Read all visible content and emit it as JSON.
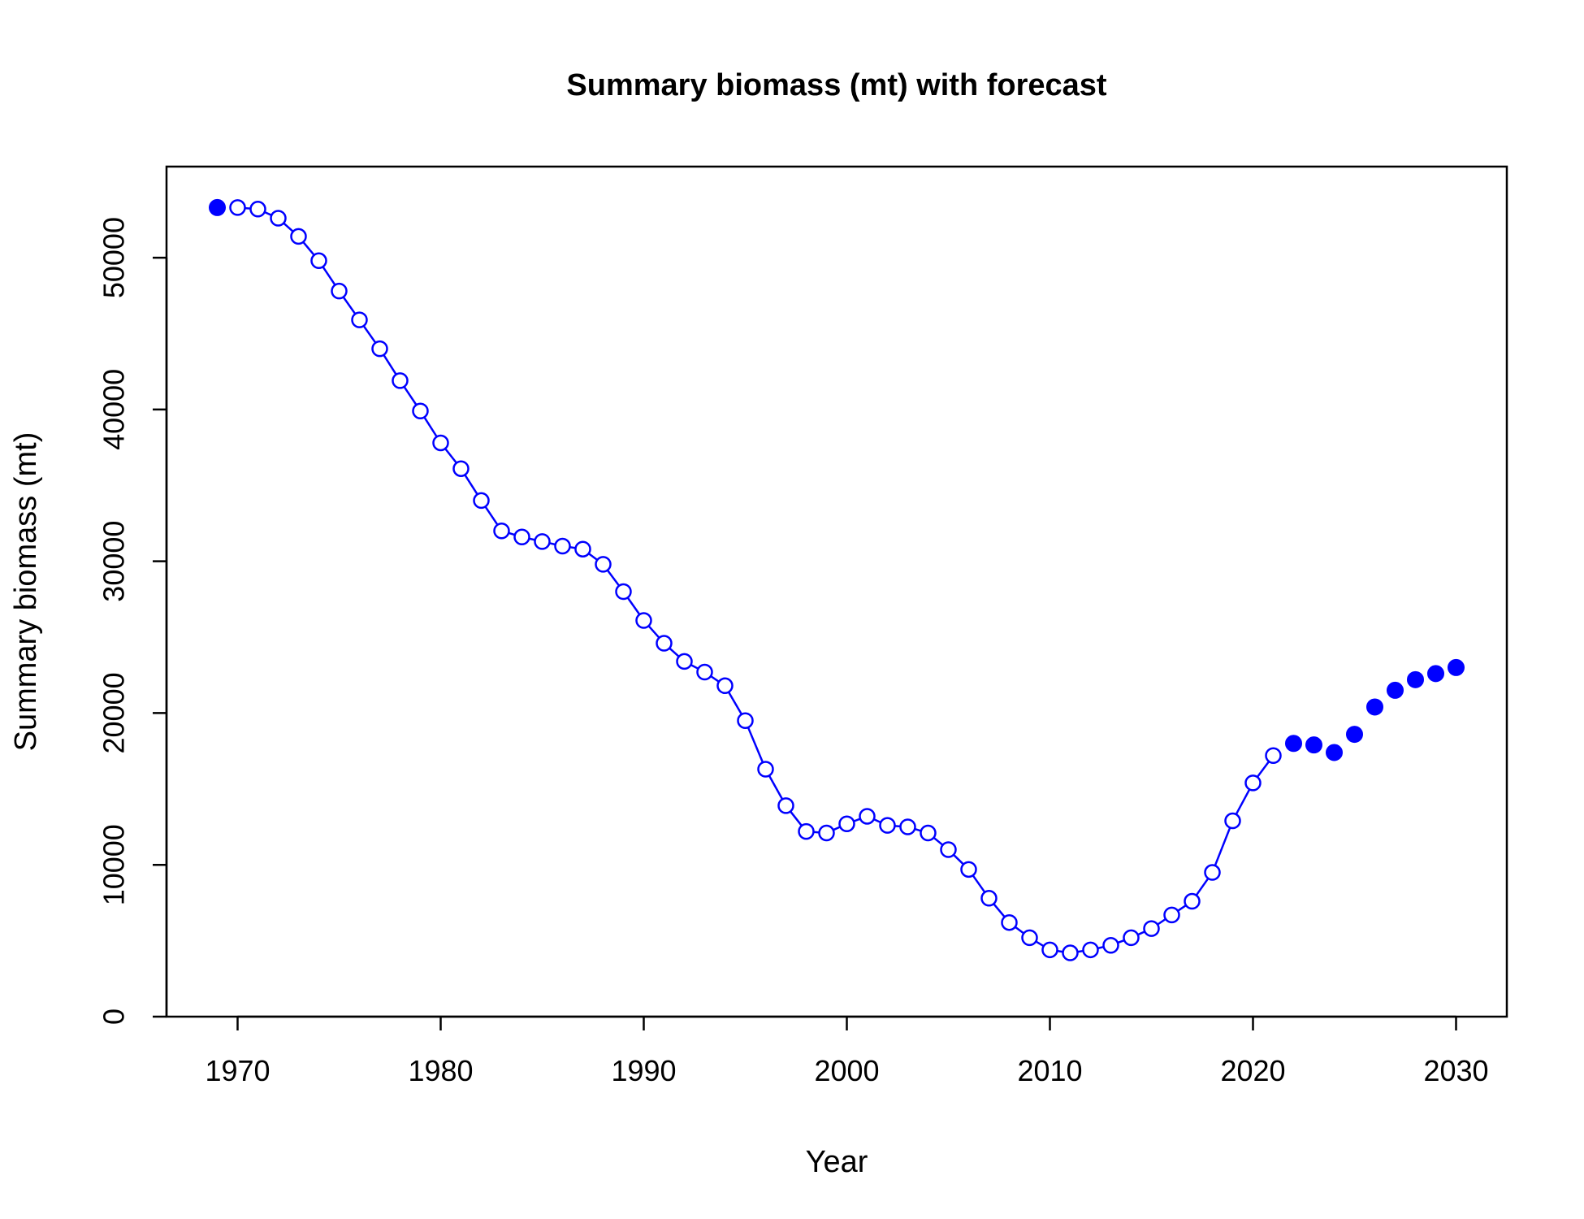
{
  "chart_data": {
    "type": "line",
    "title": "Summary biomass (mt) with forecast",
    "xlabel": "Year",
    "ylabel": "Summary biomass (mt)",
    "xlim": [
      1966.5,
      2032.5
    ],
    "ylim": [
      0,
      56000
    ],
    "x_ticks": [
      1970,
      1980,
      1990,
      2000,
      2010,
      2020,
      2030
    ],
    "y_ticks": [
      0,
      10000,
      20000,
      30000,
      40000,
      50000
    ],
    "x_tick_labels": [
      "1970",
      "1980",
      "1990",
      "2000",
      "2010",
      "2020",
      "2030"
    ],
    "y_tick_labels": [
      "0",
      "10000",
      "20000",
      "30000",
      "40000",
      "50000"
    ],
    "grid": false,
    "colors": {
      "series": "#0000ff"
    },
    "series": [
      {
        "style": "line-open-circles",
        "points": [
          [
            1970,
            53300
          ],
          [
            1971,
            53200
          ],
          [
            1972,
            52600
          ],
          [
            1973,
            51400
          ],
          [
            1974,
            49800
          ],
          [
            1975,
            47800
          ],
          [
            1976,
            45900
          ],
          [
            1977,
            44000
          ],
          [
            1978,
            41900
          ],
          [
            1979,
            39900
          ],
          [
            1980,
            37800
          ],
          [
            1981,
            36100
          ],
          [
            1982,
            34000
          ],
          [
            1983,
            32000
          ],
          [
            1984,
            31600
          ],
          [
            1985,
            31300
          ],
          [
            1986,
            31000
          ],
          [
            1987,
            30800
          ],
          [
            1988,
            29800
          ],
          [
            1989,
            28000
          ],
          [
            1990,
            26100
          ],
          [
            1991,
            24600
          ],
          [
            1992,
            23400
          ],
          [
            1993,
            22700
          ],
          [
            1994,
            21800
          ],
          [
            1995,
            19500
          ],
          [
            1996,
            16300
          ],
          [
            1997,
            13900
          ],
          [
            1998,
            12200
          ],
          [
            1999,
            12100
          ],
          [
            2000,
            12700
          ],
          [
            2001,
            13200
          ],
          [
            2002,
            12600
          ],
          [
            2003,
            12500
          ],
          [
            2004,
            12100
          ],
          [
            2005,
            11000
          ],
          [
            2006,
            9700
          ],
          [
            2007,
            7800
          ],
          [
            2008,
            6200
          ],
          [
            2009,
            5200
          ],
          [
            2010,
            4400
          ],
          [
            2011,
            4200
          ],
          [
            2012,
            4400
          ],
          [
            2013,
            4700
          ],
          [
            2014,
            5200
          ],
          [
            2015,
            5800
          ],
          [
            2016,
            6700
          ],
          [
            2017,
            7600
          ],
          [
            2018,
            9500
          ],
          [
            2019,
            12900
          ],
          [
            2020,
            15400
          ],
          [
            2021,
            17200
          ]
        ]
      },
      {
        "style": "filled-points",
        "points": [
          [
            1969,
            53300
          ],
          [
            2022,
            18000
          ],
          [
            2023,
            17900
          ],
          [
            2024,
            17400
          ],
          [
            2025,
            18600
          ],
          [
            2026,
            20400
          ],
          [
            2027,
            21500
          ],
          [
            2028,
            22200
          ],
          [
            2029,
            22600
          ],
          [
            2030,
            23000
          ]
        ]
      }
    ]
  }
}
